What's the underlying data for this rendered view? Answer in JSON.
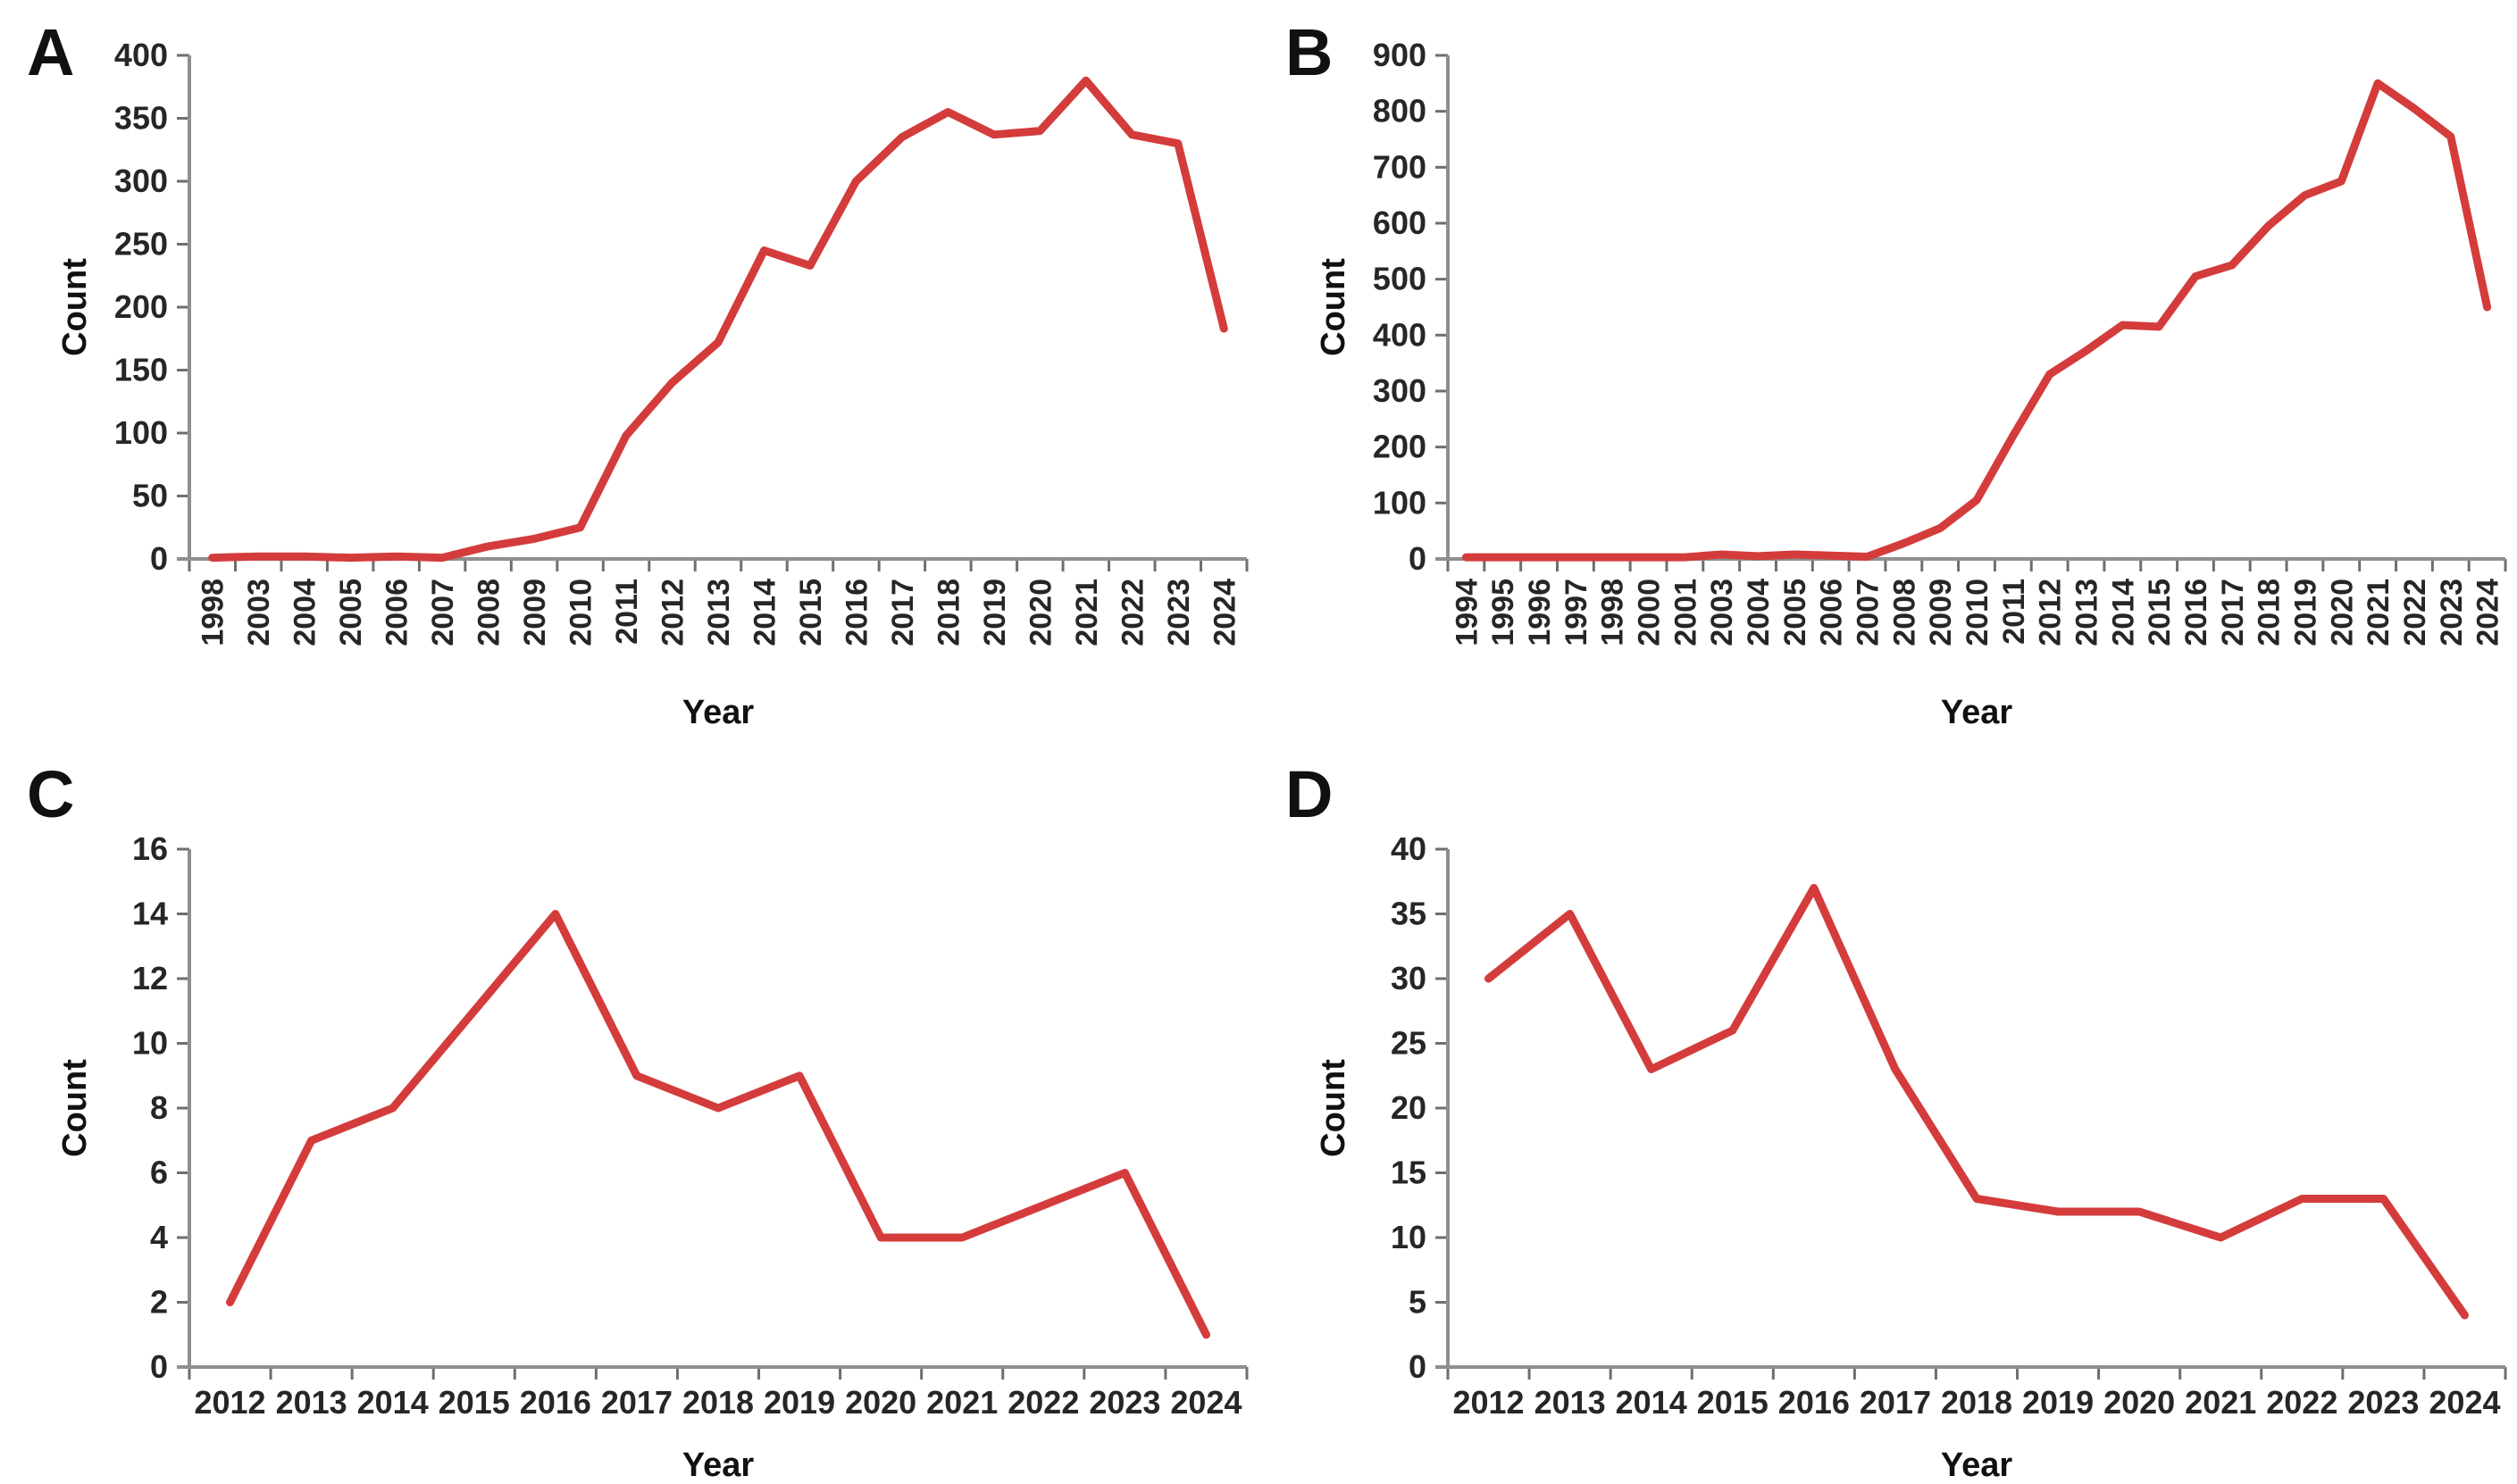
{
  "figure": {
    "background": "#ffffff",
    "description": "Four-panel (A-D) red line charts of publication counts per year"
  },
  "colors": {
    "line": "#d43c3c",
    "axis": "#8f8f8f",
    "tick": "#6e6e6e",
    "text": "#262626"
  },
  "chart_data": [
    {
      "id": "A",
      "type": "line",
      "panel_label": "A",
      "title": "",
      "xlabel": "Year",
      "ylabel": "Count",
      "ylim": [
        0,
        400
      ],
      "ytick_step": 50,
      "grid": false,
      "legend": "none",
      "x_label_rotation": "vertical",
      "categories": [
        "1998",
        "2003",
        "2004",
        "2005",
        "2006",
        "2007",
        "2008",
        "2009",
        "2010",
        "2011",
        "2012",
        "2013",
        "2014",
        "2015",
        "2016",
        "2017",
        "2018",
        "2019",
        "2020",
        "2021",
        "2022",
        "2023",
        "2024"
      ],
      "values": [
        1,
        2,
        2,
        1,
        2,
        1,
        10,
        16,
        25,
        98,
        140,
        172,
        245,
        233,
        300,
        335,
        355,
        337,
        340,
        380,
        337,
        330,
        183
      ]
    },
    {
      "id": "B",
      "type": "line",
      "panel_label": "B",
      "title": "",
      "xlabel": "Year",
      "ylabel": "Count",
      "ylim": [
        0,
        900
      ],
      "ytick_step": 100,
      "grid": false,
      "legend": "none",
      "x_label_rotation": "vertical",
      "categories": [
        "1994",
        "1995",
        "1996",
        "1997",
        "1998",
        "2000",
        "2001",
        "2003",
        "2004",
        "2005",
        "2006",
        "2007",
        "2008",
        "2009",
        "2010",
        "2011",
        "2012",
        "2013",
        "2014",
        "2015",
        "2016",
        "2017",
        "2018",
        "2019",
        "2020",
        "2021",
        "2022",
        "2023",
        "2024"
      ],
      "values": [
        3,
        3,
        3,
        3,
        3,
        3,
        3,
        8,
        5,
        8,
        6,
        4,
        28,
        55,
        105,
        220,
        330,
        372,
        418,
        415,
        505,
        525,
        595,
        650,
        675,
        850,
        805,
        755,
        450
      ]
    },
    {
      "id": "C",
      "type": "line",
      "panel_label": "C",
      "title": "",
      "xlabel": "Year",
      "ylabel": "Count",
      "ylim": [
        0,
        16
      ],
      "ytick_step": 2,
      "grid": false,
      "legend": "none",
      "x_label_rotation": "horizontal",
      "categories": [
        "2012",
        "2013",
        "2014",
        "2015",
        "2016",
        "2017",
        "2018",
        "2019",
        "2020",
        "2021",
        "2022",
        "2023",
        "2024"
      ],
      "values": [
        2,
        7,
        8,
        11,
        14,
        9,
        8,
        9,
        4,
        4,
        5,
        6,
        1
      ]
    },
    {
      "id": "D",
      "type": "line",
      "panel_label": "D",
      "title": "",
      "xlabel": "Year",
      "ylabel": "Count",
      "ylim": [
        0,
        40
      ],
      "ytick_step": 5,
      "grid": false,
      "legend": "none",
      "x_label_rotation": "horizontal",
      "categories": [
        "2012",
        "2013",
        "2014",
        "2015",
        "2016",
        "2017",
        "2018",
        "2019",
        "2020",
        "2021",
        "2022",
        "2023",
        "2024"
      ],
      "values": [
        30,
        35,
        23,
        26,
        37,
        23,
        13,
        12,
        12,
        10,
        13,
        13,
        4
      ]
    }
  ]
}
